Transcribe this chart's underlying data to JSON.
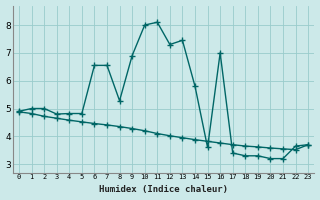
{
  "xlabel": "Humidex (Indice chaleur)",
  "bg_color": "#cce9e9",
  "grid_color": "#99cccc",
  "line_color": "#006666",
  "x_upper": [
    0,
    1,
    2,
    3,
    4,
    5,
    6,
    7,
    8,
    9,
    10,
    11,
    12,
    13,
    14,
    15,
    16,
    17,
    18,
    19,
    20,
    21,
    22,
    23
  ],
  "y_upper": [
    4.9,
    5.0,
    5.0,
    4.8,
    4.82,
    4.82,
    6.55,
    6.55,
    5.28,
    6.9,
    8.0,
    8.1,
    7.3,
    7.45,
    5.8,
    3.6,
    7.0,
    3.4,
    3.3,
    3.3,
    3.2,
    3.2,
    3.65,
    3.7
  ],
  "x_lower": [
    0,
    1,
    2,
    3,
    4,
    5,
    6,
    7,
    8,
    9,
    10,
    11,
    12,
    13,
    14,
    15,
    16,
    17,
    18,
    19,
    20,
    21,
    22,
    23
  ],
  "y_lower": [
    4.88,
    4.82,
    4.72,
    4.65,
    4.58,
    4.52,
    4.46,
    4.41,
    4.35,
    4.28,
    4.2,
    4.1,
    4.02,
    3.95,
    3.88,
    3.82,
    3.76,
    3.7,
    3.65,
    3.62,
    3.58,
    3.55,
    3.52,
    3.7
  ],
  "xlim": [
    -0.5,
    23.5
  ],
  "ylim": [
    2.7,
    8.7
  ],
  "yticks": [
    3,
    4,
    5,
    6,
    7,
    8
  ],
  "xticks": [
    0,
    1,
    2,
    3,
    4,
    5,
    6,
    7,
    8,
    9,
    10,
    11,
    12,
    13,
    14,
    15,
    16,
    17,
    18,
    19,
    20,
    21,
    22,
    23
  ],
  "figsize": [
    3.2,
    2.0
  ],
  "dpi": 100
}
